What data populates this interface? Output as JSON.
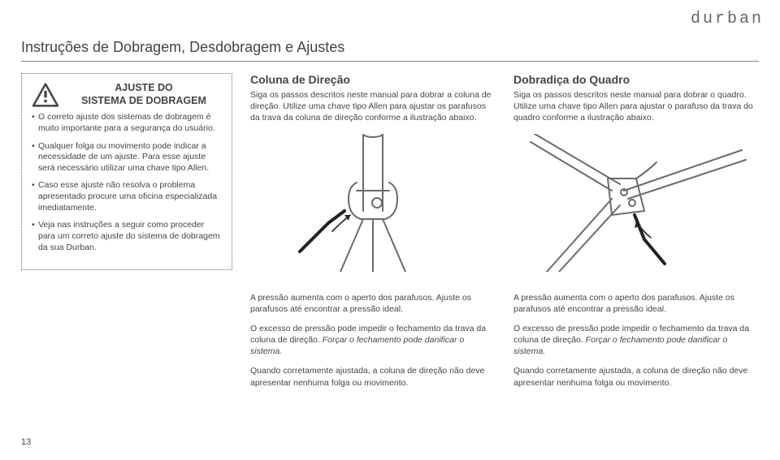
{
  "brand": "durban",
  "page_title": "Instruções de Dobragem, Desdobragem e Ajustes",
  "warning_box": {
    "heading": "AJUSTE DO\nSISTEMA DE DOBRAGEM",
    "bullets": [
      "O correto ajuste dos sistemas de dobragem é muito importante para a segurança do usuário.",
      "Qualquer folga ou movimento pode indicar a necessidade de um ajuste. Para esse ajuste será necessário utilizar uma chave tipo Allen.",
      "Caso esse ajuste não resolva o problema apresentado procure uma oficina especializada imediatamente.",
      "Veja nas instruções a seguir como proceder para um correto ajuste do sistema de dobragem da sua Durban."
    ]
  },
  "col1": {
    "heading": "Coluna de Direção",
    "body": "Siga os passos descritos neste manual para dobrar a coluna de direção. Utilize uma chave tipo Allen para ajustar os parafusos da trava da coluna de direção conforme a ilustração abaixo."
  },
  "col2": {
    "heading": "Dobradiça do Quadro",
    "body": "Siga os passos descritos neste manual para dobrar o quadro. Utilize uma chave tipo Allen para ajustar o parafuso da trava do quadro conforme a ilustração abaixo."
  },
  "lower_col1": {
    "p1": "A pressão aumenta com o aperto dos parafusos. Ajuste os parafusos até encontrar a pressão ideal.",
    "p2": "O excesso de pressão pode impedir o fechamento da trava da coluna de direção. Forçar o fechamento pode danificar o sistema.",
    "p3": "Quando corretamente ajustada, a coluna de direção não deve apresentar nenhuma folga ou movimento."
  },
  "lower_col2": {
    "p1": "A pressão aumenta com o aperto dos parafusos. Ajuste os parafusos até encontrar a pressão ideal.",
    "p2": "O excesso de pressão pode impedir o fechamento da trava da coluna de direção. Forçar o fechamento pode danificar o sistema.",
    "p3": "Quando corretamente ajustada, a coluna de direção não deve apresentar nenhuma folga ou movimento."
  },
  "page_number": "13",
  "colors": {
    "text": "#5b5b5b",
    "stroke": "#6b6b6b",
    "rule": "#888888"
  }
}
